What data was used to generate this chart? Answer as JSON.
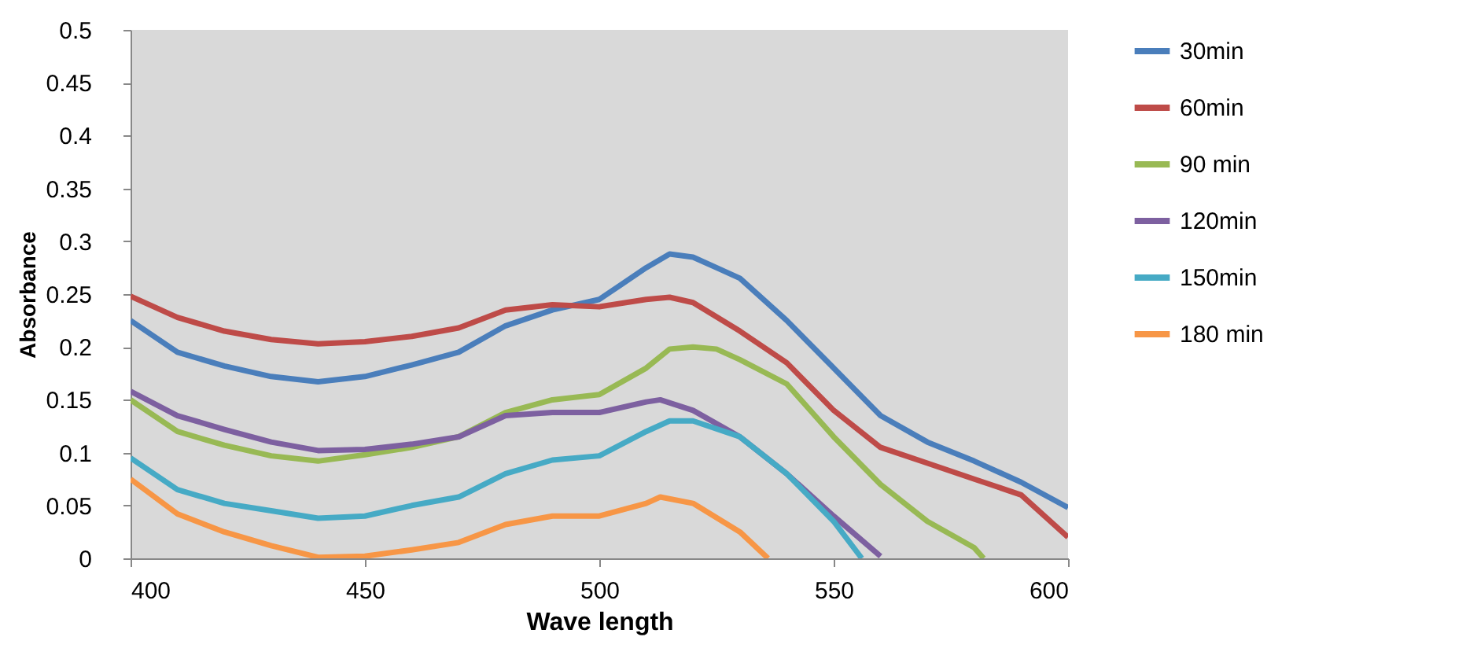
{
  "chart_data": {
    "type": "line",
    "xlabel": "Wave length",
    "ylabel": "Absorbance",
    "xlim": [
      400,
      600
    ],
    "xticks": [
      400,
      450,
      500,
      550,
      600
    ],
    "ylim": [
      0,
      0.5
    ],
    "yticks": [
      0,
      0.05,
      0.1,
      0.15,
      0.2,
      0.25,
      0.3,
      0.35,
      0.4,
      0.45,
      0.5
    ],
    "grid": false,
    "legend": "right",
    "marker": "none",
    "line_style": "solid",
    "series": [
      {
        "name": "30min",
        "color": "#4a7ebb",
        "x": [
          400,
          410,
          420,
          430,
          440,
          450,
          460,
          470,
          480,
          490,
          500,
          505,
          510,
          515,
          520,
          525,
          530,
          540,
          550,
          560,
          570,
          580,
          590,
          600
        ],
        "values": [
          0.225,
          0.195,
          0.182,
          0.172,
          0.167,
          0.172,
          0.183,
          0.195,
          0.22,
          0.235,
          0.245,
          0.26,
          0.275,
          0.288,
          0.285,
          0.275,
          0.265,
          0.225,
          0.18,
          0.135,
          0.11,
          0.092,
          0.072,
          0.048
        ]
      },
      {
        "name": "60min",
        "color": "#be4b48",
        "x": [
          400,
          410,
          420,
          430,
          440,
          450,
          460,
          470,
          480,
          490,
          500,
          510,
          515,
          520,
          530,
          540,
          550,
          560,
          570,
          580,
          590,
          600
        ],
        "values": [
          0.248,
          0.228,
          0.215,
          0.207,
          0.203,
          0.205,
          0.21,
          0.218,
          0.235,
          0.24,
          0.238,
          0.245,
          0.247,
          0.242,
          0.215,
          0.185,
          0.14,
          0.105,
          0.09,
          0.075,
          0.06,
          0.02
        ]
      },
      {
        "name": "90 min",
        "color": "#98b954",
        "x": [
          400,
          410,
          420,
          430,
          440,
          450,
          460,
          470,
          480,
          490,
          500,
          510,
          515,
          520,
          525,
          530,
          540,
          550,
          560,
          570,
          580,
          582
        ],
        "values": [
          0.15,
          0.12,
          0.107,
          0.097,
          0.092,
          0.098,
          0.105,
          0.115,
          0.138,
          0.15,
          0.155,
          0.18,
          0.198,
          0.2,
          0.198,
          0.188,
          0.165,
          0.115,
          0.07,
          0.035,
          0.01,
          0
        ]
      },
      {
        "name": "120min",
        "color": "#7d60a0",
        "x": [
          400,
          410,
          420,
          430,
          440,
          450,
          460,
          470,
          480,
          490,
          500,
          510,
          513,
          520,
          530,
          540,
          550,
          560
        ],
        "values": [
          0.158,
          0.135,
          0.122,
          0.11,
          0.102,
          0.103,
          0.108,
          0.115,
          0.135,
          0.138,
          0.138,
          0.148,
          0.15,
          0.14,
          0.115,
          0.08,
          0.04,
          0.002
        ]
      },
      {
        "name": "150min",
        "color": "#46aac5",
        "x": [
          400,
          410,
          420,
          430,
          440,
          450,
          460,
          470,
          480,
          490,
          500,
          510,
          515,
          520,
          530,
          540,
          550,
          556
        ],
        "values": [
          0.095,
          0.065,
          0.052,
          0.045,
          0.038,
          0.04,
          0.05,
          0.058,
          0.08,
          0.093,
          0.097,
          0.12,
          0.13,
          0.13,
          0.115,
          0.08,
          0.035,
          0
        ]
      },
      {
        "name": "180 min",
        "color": "#f79646",
        "x": [
          400,
          410,
          420,
          430,
          440,
          450,
          460,
          470,
          480,
          490,
          500,
          510,
          513,
          520,
          530,
          536
        ],
        "values": [
          0.075,
          0.042,
          0.025,
          0.012,
          0.001,
          0.002,
          0.008,
          0.015,
          0.032,
          0.04,
          0.04,
          0.052,
          0.058,
          0.052,
          0.025,
          0
        ]
      }
    ]
  }
}
